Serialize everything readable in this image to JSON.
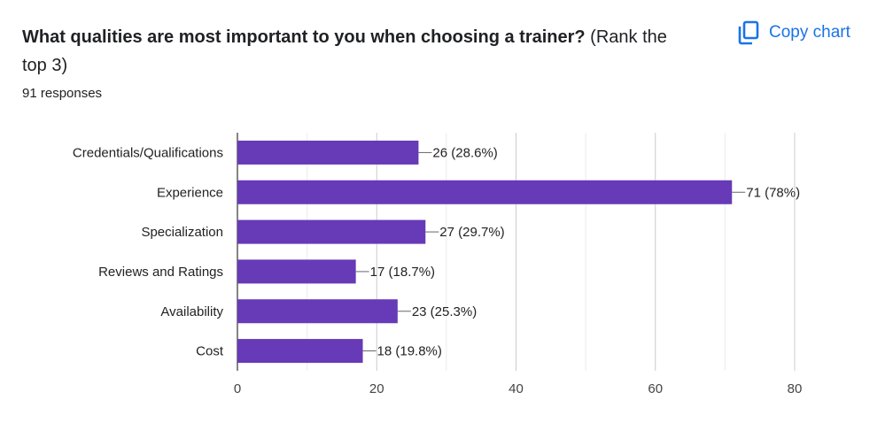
{
  "question": {
    "bold_text": "What qualities are most important to you when choosing a trainer?",
    "rest_text": " (Rank the top 3)"
  },
  "responses_label": "91 responses",
  "copy_button": {
    "label": "Copy chart",
    "icon": "copy-icon",
    "color": "#1a73e8"
  },
  "chart_data": {
    "type": "bar",
    "orientation": "horizontal",
    "categories": [
      "Credentials/Qualifications",
      "Experience",
      "Specialization",
      "Reviews and Ratings",
      "Availability",
      "Cost"
    ],
    "values": [
      26,
      71,
      27,
      17,
      23,
      18
    ],
    "data_labels": [
      "26 (28.6%)",
      "71 (78%)",
      "27 (29.7%)",
      "17 (18.7%)",
      "23 (25.3%)",
      "18 (19.8%)"
    ],
    "xlim": [
      0,
      80
    ],
    "xticks": [
      0,
      20,
      40,
      60,
      80
    ],
    "bar_color": "#673ab7",
    "grid": true,
    "title": "",
    "xlabel": "",
    "ylabel": ""
  }
}
